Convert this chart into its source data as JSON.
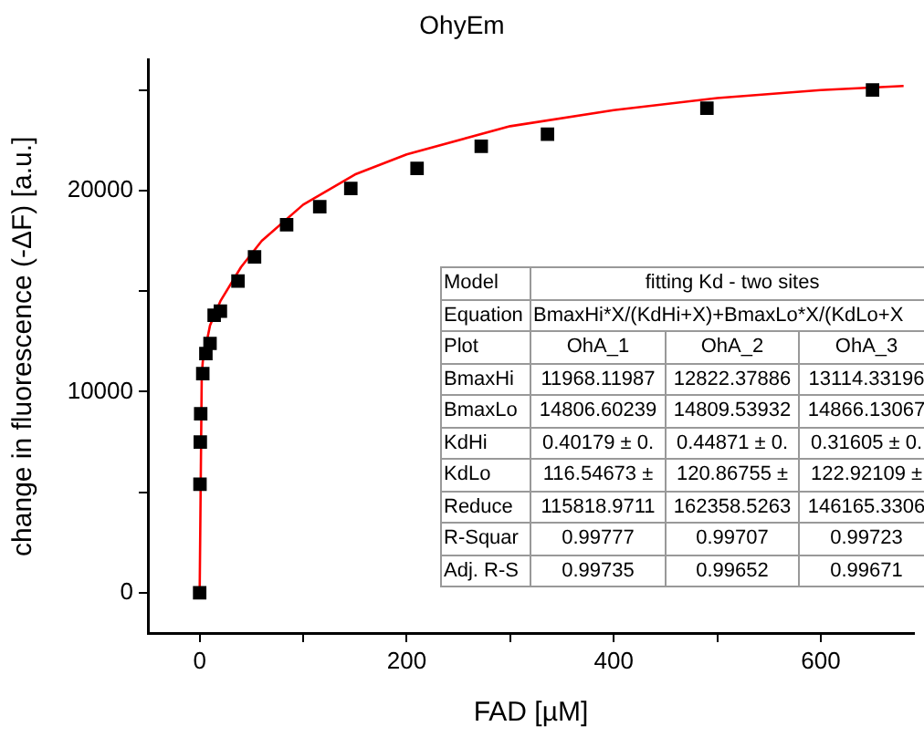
{
  "chart_data": {
    "type": "scatter",
    "title": "OhyEm",
    "xlabel": "FAD [µM]",
    "ylabel": "change in fluorescence (-ΔF) [a.u.]",
    "xlim": [
      -50,
      690
    ],
    "xticks": [
      0,
      {
        "value": 100,
        "label": null
      },
      200,
      {
        "value": 300,
        "label": null
      },
      400,
      {
        "value": 500,
        "label": null
      },
      600
    ],
    "ylim": [
      -2000,
      26500
    ],
    "yticks": [
      0,
      {
        "value": 5000,
        "label": null
      },
      10000,
      {
        "value": 15000,
        "label": null
      },
      20000,
      {
        "value": 25000,
        "label": null
      }
    ],
    "grid": false,
    "legend": false,
    "marker": "square",
    "series": [
      {
        "color": "#000000",
        "x": [
          0,
          0.3,
          0.6,
          1,
          3,
          6,
          10,
          14,
          20,
          37,
          53,
          84,
          116,
          146,
          210,
          272,
          336,
          490,
          650
        ],
        "values": [
          0,
          5400,
          7500,
          8900,
          10900,
          11900,
          12400,
          13800,
          14000,
          15500,
          16700,
          18300,
          19200,
          20100,
          21100,
          22200,
          22800,
          24100,
          25000
        ]
      },
      {
        "type": "line",
        "color": "#ff0000",
        "marker": "none",
        "line_style": "solid",
        "x": [
          0,
          2,
          3,
          10,
          20,
          40,
          60,
          100,
          150,
          200,
          300,
          400,
          500,
          600,
          680
        ],
        "values": [
          0,
          10800,
          11500,
          13300,
          14500,
          16200,
          17500,
          19300,
          20800,
          21800,
          23200,
          24000,
          24600,
          25000,
          25200
        ]
      }
    ],
    "annotations": [
      "Model",
      "fitting Kd - two sites",
      "Equation",
      "BmaxHi*X/(KdHi+X)+BmaxLo*X/(KdLo+X",
      "Plot",
      "OhA_1",
      "OhA_2",
      "OhA_3",
      "BmaxHi",
      "11968.11987",
      "12822.37886",
      "13114.33196",
      "BmaxLo",
      "14806.60239",
      "14809.53932",
      "14866.13067",
      "KdHi",
      "0.40179 ± 0.",
      "0.44871 ± 0.",
      "0.31605 ± 0.",
      "KdLo",
      "116.54673 ±",
      "120.86755 ±",
      "122.92109 ±",
      "Reduce",
      "115818.9711",
      "162358.5263",
      "146165.3306",
      "R-Squar",
      "0.99777",
      "0.99707",
      "0.99723",
      "Adj. R-S",
      "0.99735",
      "0.99652",
      "0.99671"
    ]
  }
}
